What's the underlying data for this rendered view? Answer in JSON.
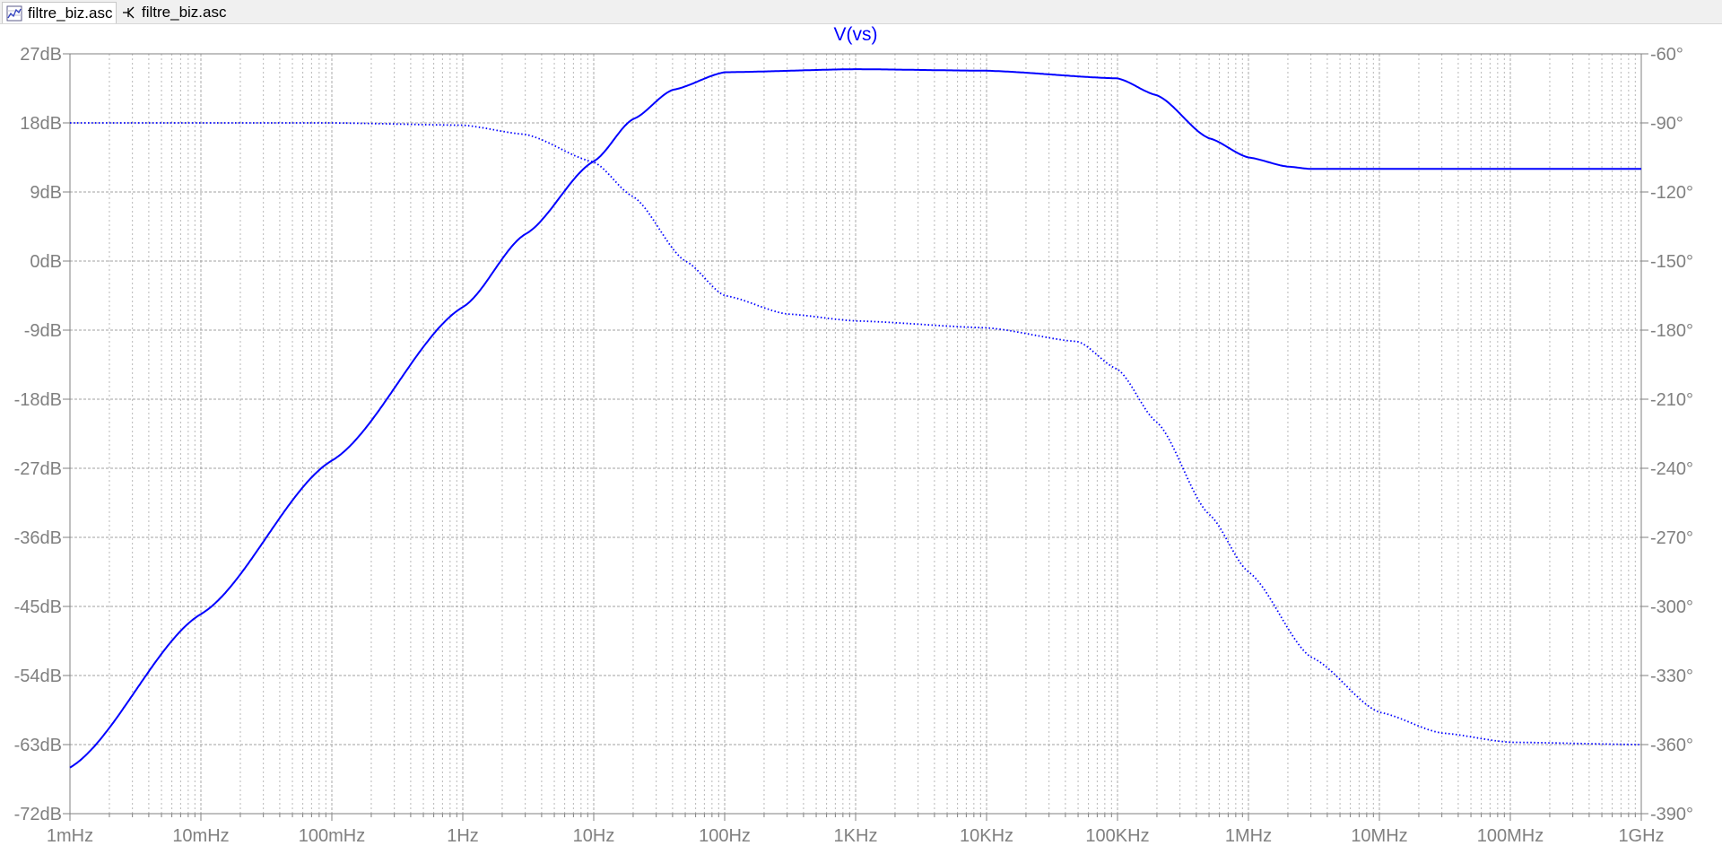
{
  "tabs": [
    {
      "label": "filtre_biz.asc",
      "icon": "waveform-icon",
      "active": true
    },
    {
      "label": "filtre_biz.asc",
      "icon": "schematic-icon",
      "active": false
    }
  ],
  "chart_data": {
    "type": "line",
    "title": "V(vs)",
    "xscale": "log",
    "xlim_hz": [
      0.001,
      1000000000
    ],
    "x_ticks": [
      "1mHz",
      "10mHz",
      "100mHz",
      "1Hz",
      "10Hz",
      "100Hz",
      "1KHz",
      "10KHz",
      "100KHz",
      "1MHz",
      "10MHz",
      "100MHz",
      "1GHz"
    ],
    "y_left": {
      "ylim": [
        -72,
        27
      ],
      "ticks": [
        "27dB",
        "18dB",
        "9dB",
        "0dB",
        "-9dB",
        "-18dB",
        "-27dB",
        "-36dB",
        "-45dB",
        "-54dB",
        "-63dB",
        "-72dB"
      ]
    },
    "y_right": {
      "ylim": [
        -390,
        -60
      ],
      "ticks": [
        "-60°",
        "-90°",
        "-120°",
        "-150°",
        "-180°",
        "-210°",
        "-240°",
        "-270°",
        "-300°",
        "-330°",
        "-360°",
        "-390°"
      ]
    },
    "grid": true,
    "colors": {
      "trace": "#0000ff",
      "grid": "#a0a0a0",
      "axis_text": "#808080",
      "axis": "#808080"
    },
    "series": [
      {
        "axis": "left",
        "style": "solid",
        "x": [
          0.001,
          0.01,
          0.1,
          1,
          3,
          10,
          20,
          40,
          100,
          1000,
          10000,
          100000,
          200000,
          500000,
          1000000,
          2000000,
          3000000,
          10000000,
          100000000,
          1000000000
        ],
        "y": [
          -66,
          -46,
          -26,
          -6,
          3.5,
          13,
          18.5,
          22.3,
          24.6,
          25,
          24.8,
          23.8,
          21.6,
          16,
          13.5,
          12.3,
          12,
          12,
          12,
          12
        ]
      },
      {
        "axis": "right",
        "style": "dotted",
        "x": [
          0.001,
          0.1,
          1,
          3,
          10,
          20,
          50,
          100,
          300,
          1000,
          10000,
          50000,
          100000,
          200000,
          500000,
          1000000,
          3000000,
          10000000,
          30000000,
          100000000,
          1000000000
        ],
        "y": [
          -90,
          -90,
          -91,
          -95,
          -107,
          -122,
          -150,
          -165,
          -173,
          -176,
          -179,
          -185,
          -197,
          -220,
          -260,
          -285,
          -322,
          -346,
          -355,
          -359,
          -360
        ]
      }
    ]
  }
}
